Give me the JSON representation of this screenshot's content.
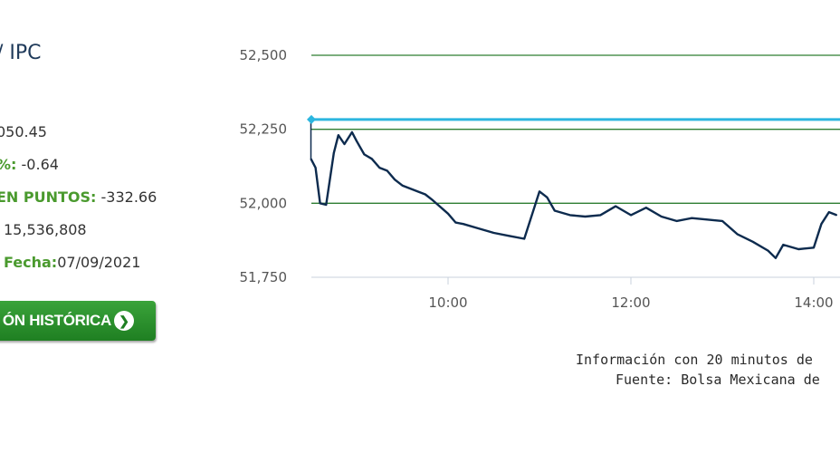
{
  "panel": {
    "title": "/ IPC",
    "last_value": "050.45",
    "pct_label": "%:",
    "pct_value": "-0.64",
    "points_label": "EN PUNTOS:",
    "points_value": "-332.66",
    "volume_value": "15,536,808",
    "date_label": "Fecha:",
    "date_value": "07/09/2021",
    "history_button": "ÓN HISTÓRICA"
  },
  "footer": {
    "info": "Información con 20 minutos de",
    "source": "Fuente: Bolsa Mexicana de"
  },
  "colors": {
    "line": "#0d2b4e",
    "reference": "#2cb6df",
    "grid": "#2e7d32",
    "button": "#2a8f2c",
    "label_green": "#4a9a2e"
  },
  "chart_data": {
    "type": "line",
    "y_ticks": [
      "52,500",
      "52,250",
      "52,000",
      "51,750"
    ],
    "x_ticks": [
      "10:00",
      "12:00",
      "14:00"
    ],
    "ylim": [
      51750,
      52500
    ],
    "reference_value": 52283,
    "series": [
      {
        "x": [
          "8:30",
          "8:33",
          "8:36",
          "8:40",
          "8:45",
          "8:48",
          "8:52",
          "8:57",
          "9:00",
          "9:05",
          "9:10",
          "9:15",
          "9:20",
          "9:25",
          "9:30",
          "9:35",
          "9:40",
          "9:45",
          "9:50",
          "10:00",
          "10:05",
          "10:10",
          "10:20",
          "10:30",
          "10:40",
          "10:50",
          "11:00",
          "11:05",
          "11:10",
          "11:20",
          "11:30",
          "11:40",
          "11:50",
          "12:00",
          "12:10",
          "12:20",
          "12:30",
          "12:40",
          "12:50",
          "13:00",
          "13:10",
          "13:20",
          "13:30",
          "13:35",
          "13:40",
          "13:50",
          "14:00",
          "14:05",
          "14:10",
          "14:15"
        ],
        "values": [
          52150,
          52120,
          52000,
          51995,
          52170,
          52230,
          52200,
          52240,
          52210,
          52165,
          52150,
          52120,
          52110,
          52080,
          52060,
          52050,
          52040,
          52030,
          52010,
          51965,
          51935,
          51930,
          51915,
          51900,
          51890,
          51880,
          52040,
          52020,
          51975,
          51960,
          51955,
          51960,
          51990,
          51960,
          51985,
          51955,
          51940,
          51950,
          51945,
          51940,
          51895,
          51870,
          51840,
          51815,
          51860,
          51845,
          51850,
          51930,
          51970,
          51960
        ]
      }
    ]
  }
}
